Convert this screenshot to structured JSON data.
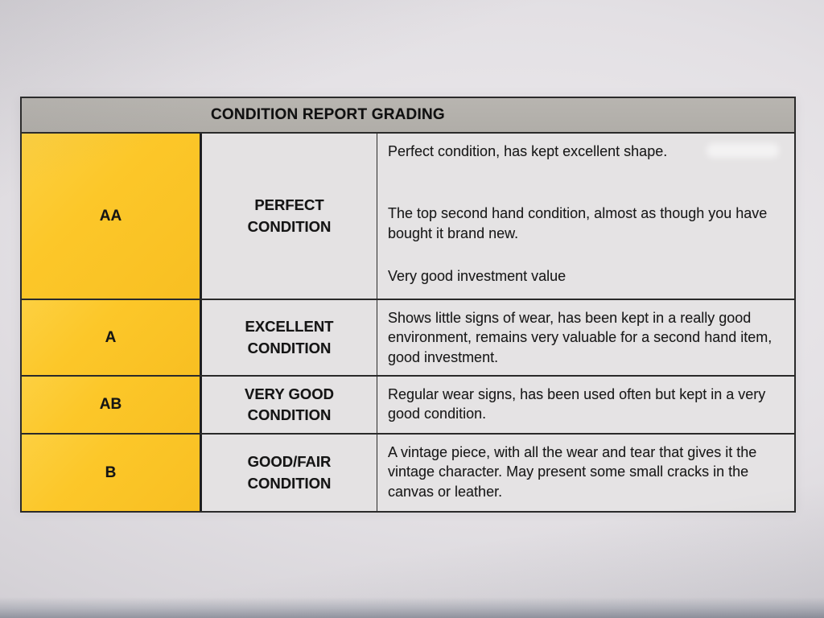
{
  "table": {
    "title": "CONDITION REPORT GRADING",
    "rows": [
      {
        "grade": "AA",
        "condition": "PERFECT\nCONDITION",
        "description": [
          "Perfect condition, has kept excellent shape.",
          "The top second hand condition, almost as though you have bought it brand new.",
          "Very good investment value"
        ]
      },
      {
        "grade": "A",
        "condition": "EXCELLENT\nCONDITION",
        "description": [
          "Shows little signs of wear, has been kept in a really good environment, remains very valuable for a second hand item, good investment."
        ]
      },
      {
        "grade": "AB",
        "condition": "VERY GOOD\nCONDITION",
        "description": [
          "Regular wear signs, has been used often but kept in a very good condition."
        ]
      },
      {
        "grade": "B",
        "condition": "GOOD/FAIR\nCONDITION",
        "description": [
          "A vintage piece, with all the wear and tear that gives it the vintage character. May present some small cracks in the canvas or leather."
        ]
      }
    ]
  },
  "colors": {
    "grade_yellow": "#fcc729",
    "header_gray": "#b2afaa",
    "cell_gray": "#e5e3e4",
    "border_black": "#2a2a2a",
    "paper": "#e6e3e7"
  }
}
